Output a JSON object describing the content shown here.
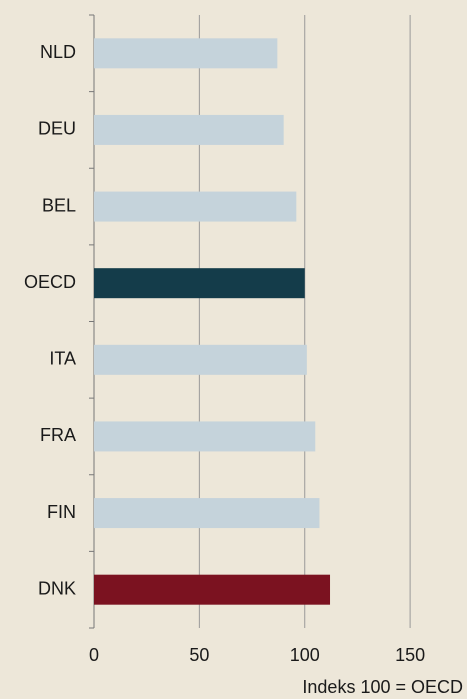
{
  "chart_data": {
    "type": "bar",
    "orientation": "horizontal",
    "categories": [
      "NLD",
      "DEU",
      "BEL",
      "OECD",
      "ITA",
      "FRA",
      "FIN",
      "DNK"
    ],
    "values": [
      87,
      90,
      96,
      100,
      101,
      105,
      107,
      112
    ],
    "colors": [
      "#c5d3db",
      "#c5d3db",
      "#c5d3db",
      "#143c4a",
      "#c5d3db",
      "#c5d3db",
      "#c5d3db",
      "#7b1220"
    ],
    "xlim": [
      0,
      177
    ],
    "xticks": [
      0,
      50,
      100,
      150
    ],
    "grid": true,
    "x_label": "Indeks 100 = OECD"
  }
}
